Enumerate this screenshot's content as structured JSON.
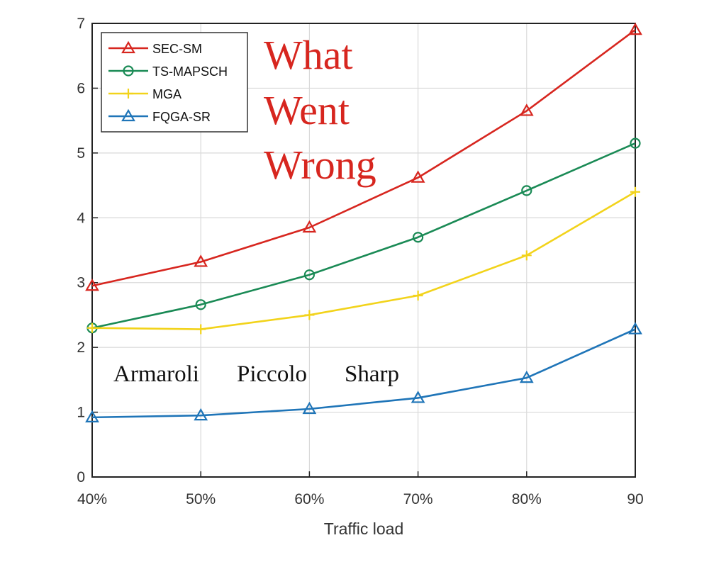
{
  "chart_data": {
    "type": "line",
    "categories": [
      "40%",
      "50%",
      "60%",
      "70%",
      "80%",
      "90"
    ],
    "xlabel": "Traffic load",
    "ylabel": "",
    "ylim": [
      0,
      7
    ],
    "yticks": [
      "0",
      "1",
      "2",
      "3",
      "4",
      "5",
      "6",
      "7"
    ],
    "grid": true,
    "legend_position": "top-left",
    "series": [
      {
        "name": "SEC-SM",
        "color": "#d7261f",
        "marker": "triangle",
        "values": [
          2.95,
          3.32,
          3.85,
          4.62,
          5.65,
          6.9
        ]
      },
      {
        "name": "TS-MAPSCH",
        "color": "#1a8a55",
        "marker": "circle",
        "values": [
          2.3,
          2.66,
          3.12,
          3.7,
          4.42,
          5.15
        ]
      },
      {
        "name": "MGA",
        "color": "#f2d31b",
        "marker": "plus",
        "values": [
          2.3,
          2.28,
          2.5,
          2.8,
          3.42,
          4.4
        ]
      },
      {
        "name": "FQGA-SR",
        "color": "#1f75b8",
        "marker": "triangle",
        "values": [
          0.92,
          0.95,
          1.05,
          1.22,
          1.53,
          2.28
        ]
      }
    ]
  },
  "overlay": {
    "lines": [
      "What",
      "Went",
      "Wrong"
    ],
    "names": [
      "Armaroli",
      "Piccolo",
      "Sharp"
    ]
  }
}
